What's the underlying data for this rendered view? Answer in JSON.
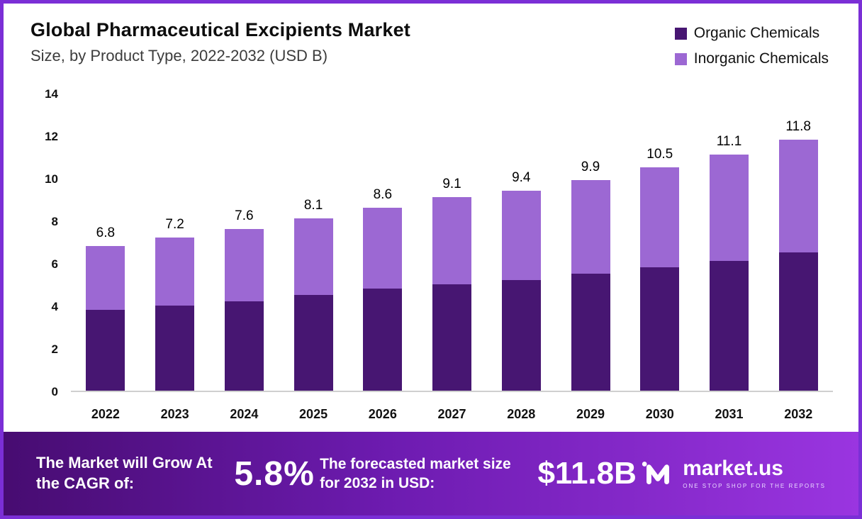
{
  "header": {
    "title": "Global Pharmaceutical Excipients Market",
    "subtitle": "Size, by Product Type, 2022-2032 (USD B)"
  },
  "legend": [
    {
      "label": "Organic Chemicals",
      "color": "#471672"
    },
    {
      "label": "Inorganic Chemicals",
      "color": "#9c68d3"
    }
  ],
  "chart_data": {
    "type": "bar",
    "stacked": true,
    "title": "Global Pharmaceutical Excipients Market Size, by Product Type, 2022-2032 (USD B)",
    "categories": [
      "2022",
      "2023",
      "2024",
      "2025",
      "2026",
      "2027",
      "2028",
      "2029",
      "2030",
      "2031",
      "2032"
    ],
    "series": [
      {
        "name": "Organic Chemicals",
        "color": "#471672",
        "values": [
          3.8,
          4.0,
          4.2,
          4.5,
          4.8,
          5.0,
          5.2,
          5.5,
          5.8,
          6.1,
          6.5
        ]
      },
      {
        "name": "Inorganic Chemicals",
        "color": "#9c68d3",
        "values": [
          3.0,
          3.2,
          3.4,
          3.6,
          3.8,
          4.1,
          4.2,
          4.4,
          4.7,
          5.0,
          5.3
        ]
      }
    ],
    "totals": [
      6.8,
      7.2,
      7.6,
      8.1,
      8.6,
      9.1,
      9.4,
      9.9,
      10.5,
      11.1,
      11.8
    ],
    "xlabel": "",
    "ylabel": "",
    "ylim": [
      0,
      14
    ],
    "yticks": [
      0,
      2,
      4,
      6,
      8,
      10,
      12,
      14
    ],
    "grid": false,
    "legend_position": "top-right"
  },
  "footer": {
    "cagr_label": "The Market will Grow At the CAGR of:",
    "cagr_value": "5.8%",
    "forecast_label": "The forecasted market size for 2032 in USD:",
    "forecast_value": "$11.8B",
    "brand": "market.us",
    "brand_tagline": "ONE STOP SHOP FOR THE REPORTS"
  }
}
